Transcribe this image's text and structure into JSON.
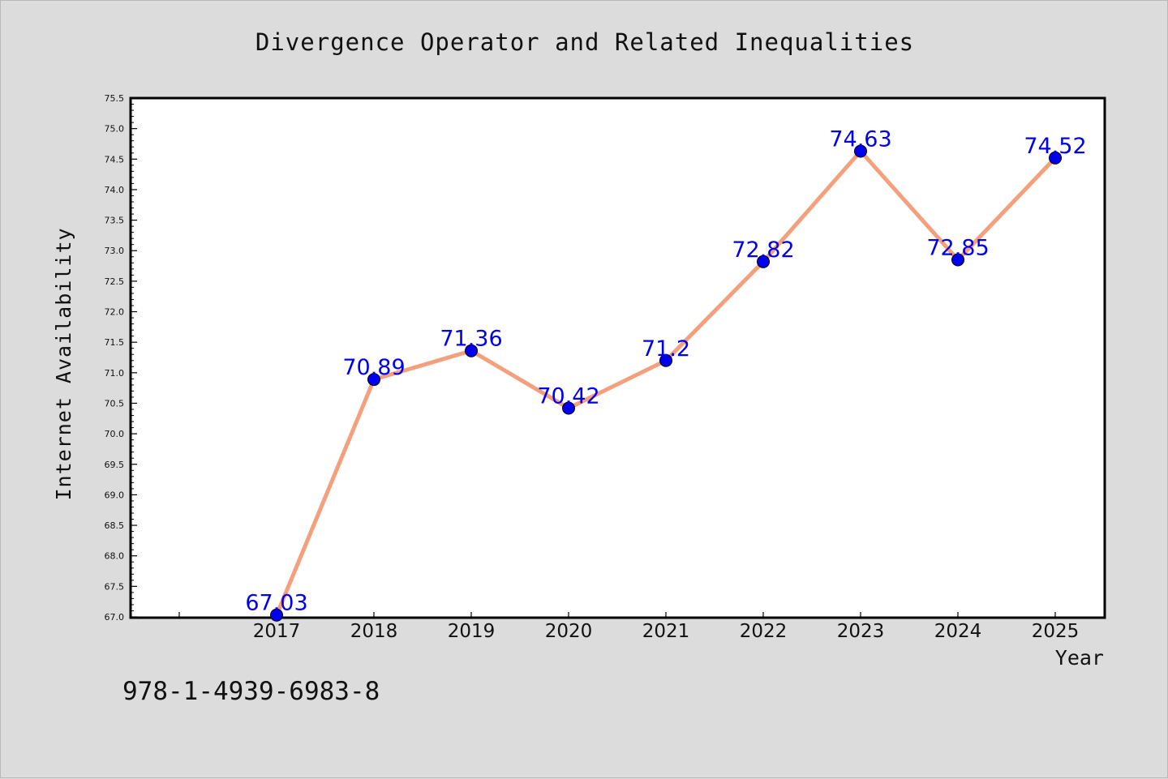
{
  "chart_data": {
    "type": "line",
    "title": "Divergence Operator and Related Inequalities",
    "xlabel": "Year",
    "ylabel": "Internet Availability",
    "categories": [
      "2017",
      "2018",
      "2019",
      "2020",
      "2021",
      "2022",
      "2023",
      "2024",
      "2025"
    ],
    "series": [
      {
        "values": [
          67.03,
          70.89,
          71.36,
          70.42,
          71.2,
          72.82,
          74.63,
          72.85,
          74.52
        ]
      }
    ],
    "data_labels": [
      "67.03",
      "70.89",
      "71.36",
      "70.42",
      "71.2",
      "72.82",
      "74.63",
      "72.85",
      "74.52"
    ],
    "ylim": [
      67.0,
      75.5
    ],
    "yticks": [
      "67.0",
      "67.5",
      "68.0",
      "68.5",
      "69.0",
      "69.5",
      "70.0",
      "70.5",
      "71.0",
      "71.5",
      "72.0",
      "72.5",
      "73.0",
      "73.5",
      "74.0",
      "74.5",
      "75.0",
      "75.5"
    ],
    "grid": false,
    "line_color": "#f4a07c",
    "marker_color": "#0000ee",
    "label_color": "#0000ee"
  },
  "footer": {
    "isbn": "978-1-4939-6983-8"
  }
}
